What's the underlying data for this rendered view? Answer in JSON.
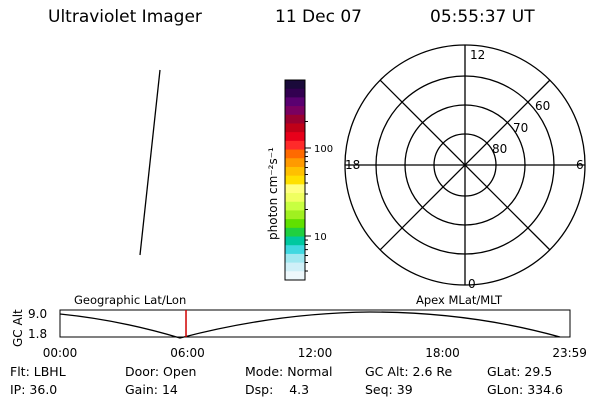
{
  "header": {
    "title": "Ultraviolet Imager",
    "date": "11 Dec 07",
    "time": "05:55:37 UT"
  },
  "colorbar": {
    "unit_label": "photon cm⁻²s⁻¹",
    "ticks": [
      {
        "label": "100",
        "value": 100
      },
      {
        "label": "10",
        "value": 10
      }
    ],
    "colors": [
      "#1a0a3a",
      "#320050",
      "#5a0070",
      "#7a0060",
      "#9a0030",
      "#c00018",
      "#e8001a",
      "#ff2a2a",
      "#ff6a00",
      "#ff9a00",
      "#ffc000",
      "#ffe000",
      "#ffff80",
      "#f0ff60",
      "#c8ff40",
      "#a0f020",
      "#60e000",
      "#20d040",
      "#00c8a0",
      "#40d8e0",
      "#a0e8f0",
      "#d0f0f8",
      "#eef8fc"
    ]
  },
  "polar": {
    "clock_labels": {
      "top": "12",
      "left": "18",
      "right": "6",
      "bottom": "0"
    },
    "lat_labels": [
      "80",
      "70",
      "60"
    ]
  },
  "timeline": {
    "axis_label": "GC Alt",
    "y_ticks": [
      "9.0",
      "1.8"
    ],
    "left_title": "Geographic Lat/Lon",
    "right_title": "Apex MLat/MLT",
    "x_ticks": [
      "00:00",
      "06:00",
      "12:00",
      "18:00",
      "23:59"
    ],
    "current_marker_hours": 5.93,
    "marker_color": "#d00000"
  },
  "status": {
    "row1": [
      {
        "key": "Flt:",
        "value": "LBHL"
      },
      {
        "key": "Door:",
        "value": "Open"
      },
      {
        "key": "Mode:",
        "value": "Normal"
      },
      {
        "key": "GC Alt:",
        "value": "2.6 Re"
      },
      {
        "key": "GLat:",
        "value": "29.5"
      }
    ],
    "row2": [
      {
        "key": "IP:",
        "value": "36.0"
      },
      {
        "key": "Gain:",
        "value": "14"
      },
      {
        "key": "Dsp:",
        "value": "4.3"
      },
      {
        "key": "Seq:",
        "value": "39"
      },
      {
        "key": "GLon:",
        "value": "334.6"
      }
    ]
  }
}
